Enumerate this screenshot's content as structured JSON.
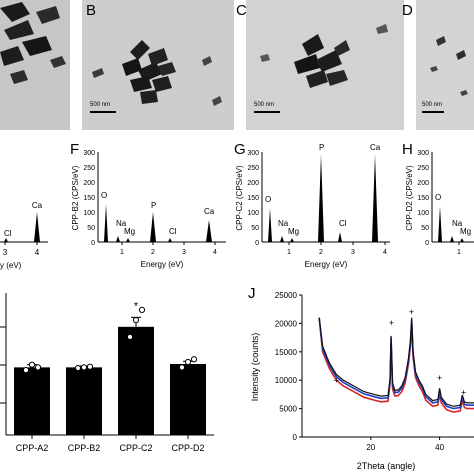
{
  "panels": {
    "tem_letters": [
      "B",
      "C",
      "D"
    ],
    "scale_label": "500 nm",
    "eds_letters": [
      "F",
      "G",
      "H"
    ]
  },
  "eds": {
    "energy_label": "Energy (eV)",
    "y_ticks": [
      "0",
      "50",
      "100",
      "150",
      "200",
      "250",
      "300"
    ],
    "x_ticks": [
      "1",
      "2",
      "3",
      "4"
    ],
    "e_partial": {
      "ca": "Ca",
      "cl": "Cl",
      "x_ticks": [
        "3",
        "4"
      ],
      "axis_fragment": "y (eV)"
    },
    "f": {
      "ylabel": "CPP-B2 (CPS/eV)",
      "peaks": {
        "O": "O",
        "Na": "Na",
        "Mg": "Mg",
        "P": "P",
        "Cl": "Cl",
        "Ca": "Ca"
      }
    },
    "g": {
      "ylabel": "CPP-C2 (CPS/eV)",
      "peaks": {
        "O": "O",
        "Na": "Na",
        "Mg": "Mg",
        "P": "P",
        "Cl": "Cl",
        "Ca": "Ca"
      }
    },
    "h": {
      "ylabel": "CPP-D2 (CPS/eV)",
      "peaks": {
        "O": "O",
        "Na": "Na",
        "Mg": "Mg"
      }
    }
  },
  "chart_data": [
    {
      "type": "bar",
      "title": "",
      "categories": [
        "CPP-A2",
        "CPP-B2",
        "CPP-C2",
        "CPP-D2"
      ],
      "values": [
        1.0,
        1.0,
        1.6,
        1.05
      ],
      "errors": [
        0.04,
        0.02,
        0.14,
        0.04
      ],
      "points": [
        [
          0.96,
          1.04,
          1.0
        ],
        [
          0.99,
          1.0,
          1.01
        ],
        [
          1.45,
          1.7,
          1.85
        ],
        [
          1.0,
          1.08,
          1.12
        ]
      ],
      "significance": [
        "",
        "",
        "*",
        ""
      ],
      "ylim": [
        0,
        2.1
      ],
      "ylabel": "",
      "xlabel": ""
    },
    {
      "type": "line",
      "panel_letter": "J",
      "xlabel": "2Theta (angle)",
      "ylabel": "Intensity (counts)",
      "xlim": [
        0,
        50
      ],
      "ylim": [
        0,
        25000
      ],
      "y_ticks": [
        0,
        5000,
        10000,
        15000,
        20000,
        25000
      ],
      "x_ticks": [
        20,
        40
      ],
      "x_tick_labels": [
        "20",
        "40"
      ],
      "markers": [
        {
          "x": 10,
          "y": 9400,
          "label": "+"
        },
        {
          "x": 26,
          "y": 19500,
          "label": "+"
        },
        {
          "x": 31.8,
          "y": 21500,
          "label": "+"
        },
        {
          "x": 40,
          "y": 9900,
          "label": "+"
        },
        {
          "x": 47,
          "y": 7300,
          "label": "+"
        }
      ],
      "series": [
        {
          "color": "#d62728",
          "x": [
            5,
            6,
            8,
            10,
            12,
            15,
            18,
            21,
            23,
            25,
            25.6,
            25.9,
            26.3,
            27,
            28,
            29,
            30,
            31,
            31.5,
            31.9,
            32.3,
            33,
            34,
            35,
            36,
            38,
            39.5,
            40,
            40.5,
            42,
            44,
            46,
            46.6,
            47.2,
            48,
            50
          ],
          "y": [
            21000,
            15000,
            12000,
            10000,
            9000,
            8000,
            7000,
            6500,
            6200,
            6300,
            9500,
            17000,
            8500,
            7200,
            7300,
            8000,
            9500,
            13000,
            16000,
            19500,
            14000,
            10500,
            9000,
            8000,
            6500,
            5400,
            5600,
            7600,
            6000,
            4800,
            4400,
            4600,
            6400,
            5200,
            5000,
            5000
          ]
        },
        {
          "color": "#1f3fbf",
          "x": [
            5,
            6,
            8,
            10,
            12,
            15,
            18,
            21,
            23,
            25,
            25.6,
            25.9,
            26.3,
            27,
            28,
            29,
            30,
            31,
            31.5,
            31.9,
            32.3,
            33,
            34,
            35,
            36,
            38,
            39.5,
            40,
            40.5,
            42,
            44,
            46,
            46.6,
            47.2,
            48,
            50
          ],
          "y": [
            21000,
            15500,
            12600,
            10600,
            9600,
            8600,
            7600,
            7100,
            6800,
            6900,
            10000,
            17500,
            9100,
            7800,
            7900,
            8600,
            10100,
            13600,
            16600,
            20500,
            14600,
            11100,
            9600,
            8600,
            7100,
            6000,
            6200,
            8200,
            6600,
            5400,
            5000,
            5200,
            7000,
            5800,
            5600,
            5600
          ]
        },
        {
          "color": "#111111",
          "x": [
            5,
            6,
            8,
            10,
            12,
            15,
            18,
            21,
            23,
            25,
            25.6,
            25.9,
            26.3,
            27,
            28,
            29,
            30,
            31,
            31.5,
            31.9,
            32.3,
            33,
            34,
            35,
            36,
            38,
            39.5,
            40,
            40.5,
            42,
            44,
            46,
            46.6,
            47.2,
            48,
            50
          ],
          "y": [
            21000,
            16000,
            13000,
            11000,
            10000,
            9000,
            8000,
            7500,
            7200,
            7300,
            10300,
            17800,
            9500,
            8200,
            8300,
            9000,
            10500,
            14000,
            17000,
            21000,
            15000,
            11500,
            10000,
            9000,
            7500,
            6400,
            6600,
            8600,
            7000,
            5800,
            5400,
            5600,
            7400,
            6200,
            6000,
            6000
          ]
        }
      ]
    }
  ]
}
